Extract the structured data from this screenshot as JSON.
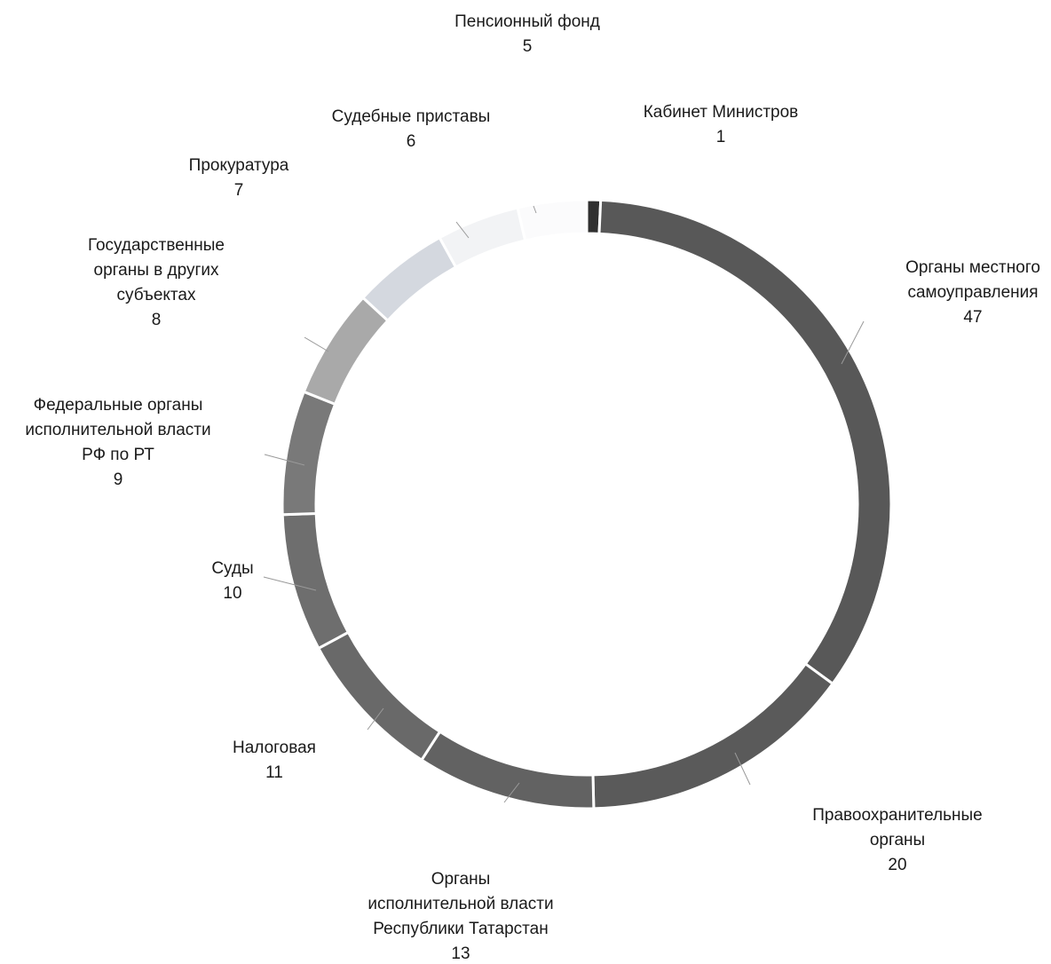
{
  "chart_data": {
    "type": "pie",
    "variant": "doughnut",
    "categories": [
      "Кабинет Министров",
      "Органы местного самоуправления",
      "Правоохранительные органы",
      "Органы исполнительной власти Республики Татарстан",
      "Налоговая",
      "Суды",
      "Федеральные органы исполнительной власти РФ по РТ",
      "Государственные органы в других субъектах",
      "Прокуратура",
      "Судебные приставы",
      "Пенсионный фонд"
    ],
    "values": [
      1,
      47,
      20,
      13,
      11,
      10,
      9,
      8,
      7,
      6,
      5
    ],
    "labels": [
      {
        "lines": [
          "Кабинет Министров"
        ],
        "value": "1"
      },
      {
        "lines": [
          "Органы местного",
          "самоуправления"
        ],
        "value": "47"
      },
      {
        "lines": [
          "Правоохранительные",
          "органы"
        ],
        "value": "20"
      },
      {
        "lines": [
          "Органы",
          "исполнительной власти",
          "Республики Татарстан"
        ],
        "value": "13"
      },
      {
        "lines": [
          "Налоговая"
        ],
        "value": "11"
      },
      {
        "lines": [
          "Суды"
        ],
        "value": "10"
      },
      {
        "lines": [
          "Федеральные органы",
          "исполнительной власти",
          "РФ по РТ"
        ],
        "value": "9"
      },
      {
        "lines": [
          "Государственные",
          "органы в других",
          "субъектах"
        ],
        "value": "8"
      },
      {
        "lines": [
          "Прокуратура"
        ],
        "value": "7"
      },
      {
        "lines": [
          "Судебные приставы"
        ],
        "value": "6"
      },
      {
        "lines": [
          "Пенсионный фонд"
        ],
        "value": "5"
      }
    ],
    "colors": [
      "#303030",
      "#585858",
      "#5a5a5a",
      "#626262",
      "#696969",
      "#6e6e6e",
      "#797979",
      "#a9a9a9",
      "#d4d8df",
      "#f2f3f5",
      "#fbfbfc"
    ],
    "legend": "none"
  }
}
